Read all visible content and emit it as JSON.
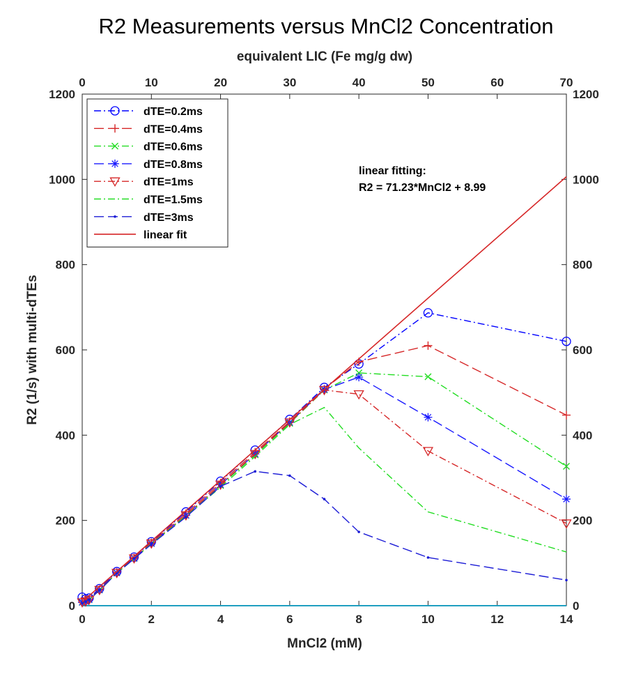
{
  "chart_data": {
    "type": "line",
    "title": "R2 Measurements versus MnCl2 Concentration",
    "xlabel": "MnCl2 (mM)",
    "ylabel": "R2 (1/s) with multi-dTEs",
    "top_xlabel": "equivalent LIC (Fe mg/g dw)",
    "xlim": [
      0,
      14
    ],
    "ylim": [
      0,
      1200
    ],
    "x_ticks": [
      0,
      2,
      4,
      6,
      8,
      10,
      12,
      14
    ],
    "y_ticks": [
      0,
      200,
      400,
      600,
      800,
      1000,
      1200
    ],
    "top_ticks": [
      {
        "x": 0,
        "label": "0"
      },
      {
        "x": 2,
        "label": "10"
      },
      {
        "x": 4,
        "label": "20"
      },
      {
        "x": 6,
        "label": "30"
      },
      {
        "x": 8,
        "label": "40"
      },
      {
        "x": 10,
        "label": "50"
      },
      {
        "x": 12,
        "label": "60"
      },
      {
        "x": 14,
        "label": "70"
      }
    ],
    "x": [
      0,
      0.1,
      0.2,
      0.5,
      1,
      1.5,
      2,
      3,
      4,
      5,
      6,
      7,
      8,
      10,
      14
    ],
    "series": [
      {
        "name": "dTE=0.2ms",
        "color": "#0000ff",
        "dash": "10 4 2 4",
        "marker": "circle",
        "values": [
          20,
          16,
          18,
          40,
          80,
          114,
          150,
          220,
          292,
          365,
          437,
          512,
          567,
          687,
          620
        ]
      },
      {
        "name": "dTE=0.4ms",
        "color": "#d62728",
        "dash": "14 6",
        "marker": "plus",
        "values": [
          8,
          10,
          14,
          38,
          78,
          112,
          148,
          216,
          288,
          360,
          432,
          508,
          572,
          610,
          447
        ]
      },
      {
        "name": "dTE=0.6ms",
        "color": "#22dd22",
        "dash": "10 4 2 4",
        "marker": "x",
        "values": [
          8,
          10,
          14,
          37,
          77,
          111,
          146,
          212,
          282,
          354,
          428,
          506,
          546,
          537,
          327
        ]
      },
      {
        "name": "dTE=0.8ms",
        "color": "#1a1aff",
        "dash": "14 6",
        "marker": "asterisk",
        "values": [
          8,
          10,
          14,
          37,
          77,
          111,
          146,
          212,
          284,
          356,
          430,
          507,
          536,
          442,
          250
        ]
      },
      {
        "name": "dTE=1ms",
        "color": "#d62728",
        "dash": "10 4 2 4",
        "marker": "triangle-down",
        "values": [
          8,
          10,
          14,
          37,
          77,
          111,
          146,
          212,
          284,
          356,
          430,
          506,
          496,
          363,
          193
        ]
      },
      {
        "name": "dTE=1.5ms",
        "color": "#22dd22",
        "dash": "10 4 2 4",
        "marker": "none",
        "values": [
          6,
          10,
          14,
          36,
          76,
          110,
          145,
          210,
          278,
          350,
          425,
          465,
          370,
          220,
          126
        ]
      },
      {
        "name": "dTE=3ms",
        "color": "#1c1cd6",
        "dash": "14 6",
        "marker": "dot",
        "values": [
          6,
          10,
          14,
          36,
          76,
          110,
          144,
          208,
          280,
          315,
          305,
          250,
          173,
          113,
          60
        ]
      },
      {
        "name": "linear fit",
        "color": "#d62728",
        "dash": "",
        "marker": "none",
        "x": [
          0,
          14
        ],
        "values": [
          8.99,
          1006.21
        ]
      }
    ],
    "annotation": {
      "line1": "linear fitting:",
      "line2": "R2 = 71.23*MnCl2 + 8.99"
    },
    "zero_line": {
      "color": "#1f9fc0",
      "y": 0
    },
    "legend": "top-left",
    "grid": false
  }
}
